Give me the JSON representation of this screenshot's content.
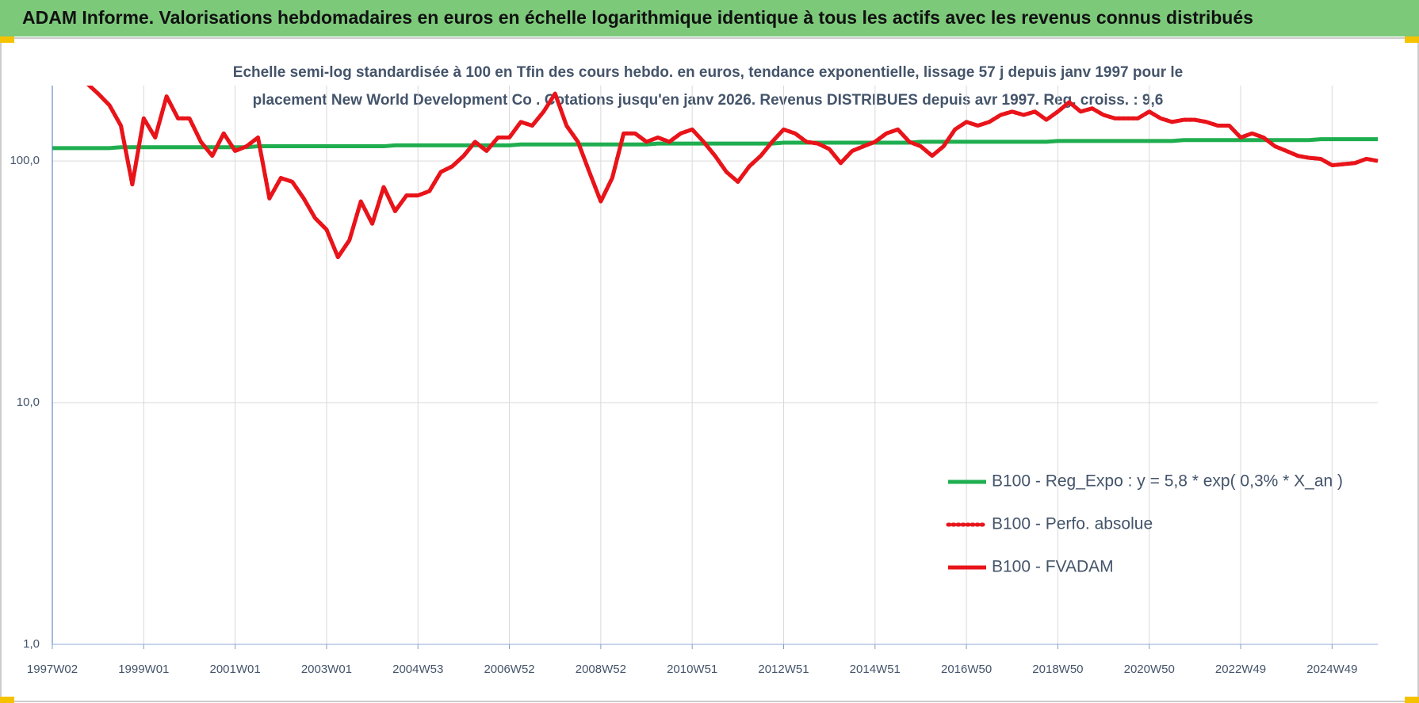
{
  "header": {
    "title": "ADAM Informe. Valorisations hebdomadaires en euros en échelle logarithmique identique à tous les actifs avec les revenus connus distribués"
  },
  "chart_data": {
    "type": "line",
    "subtitle": [
      "Echelle semi-log standardisée à 100 en Tfin des cours hebdo. en euros, tendance exponentielle, lissage 57 j depuis janv 1997 pour le",
      "placement New World Development Co . Cotations jusqu'en janv 2026. Revenus DISTRIBUES depuis avr 1997. Reg. croiss. : 9,6"
    ],
    "log_scale": true,
    "grid": true,
    "ylim": [
      1,
      205
    ],
    "yticks": [
      {
        "value": 1,
        "label": "1,0"
      },
      {
        "value": 10,
        "label": "10,0"
      },
      {
        "value": 100,
        "label": "100,0"
      }
    ],
    "categories": [
      "1997W02",
      null,
      null,
      null,
      null,
      null,
      null,
      null,
      "1999W01",
      null,
      null,
      null,
      null,
      null,
      null,
      null,
      "2001W01",
      null,
      null,
      null,
      null,
      null,
      null,
      null,
      "2003W01",
      null,
      null,
      null,
      null,
      null,
      null,
      null,
      "2004W53",
      null,
      null,
      null,
      null,
      null,
      null,
      null,
      "2006W52",
      null,
      null,
      null,
      null,
      null,
      null,
      null,
      "2008W52",
      null,
      null,
      null,
      null,
      null,
      null,
      null,
      "2010W51",
      null,
      null,
      null,
      null,
      null,
      null,
      null,
      "2012W51",
      null,
      null,
      null,
      null,
      null,
      null,
      null,
      "2014W51",
      null,
      null,
      null,
      null,
      null,
      null,
      null,
      "2016W50",
      null,
      null,
      null,
      null,
      null,
      null,
      null,
      "2018W50",
      null,
      null,
      null,
      null,
      null,
      null,
      null,
      "2020W50",
      null,
      null,
      null,
      null,
      null,
      null,
      null,
      "2022W49",
      null,
      null,
      null,
      null,
      null,
      null,
      null,
      "2024W49",
      null,
      null,
      null,
      null
    ],
    "series": [
      {
        "name": "B100 - Reg_Expo : y = 5,8 * exp( 0,3% *  X_an )",
        "color": "#1fae4f",
        "style": "solid",
        "values": [
          113,
          113,
          113,
          113,
          113,
          113,
          114,
          114,
          114,
          114,
          114,
          114,
          114,
          114,
          114,
          114,
          114,
          114,
          115,
          115,
          115,
          115,
          115,
          115,
          115,
          115,
          115,
          115,
          115,
          115,
          116,
          116,
          116,
          116,
          116,
          116,
          116,
          116,
          116,
          116,
          116,
          117,
          117,
          117,
          117,
          117,
          117,
          117,
          117,
          117,
          117,
          117,
          117,
          118,
          118,
          118,
          118,
          118,
          118,
          118,
          118,
          118,
          118,
          118,
          119,
          119,
          119,
          119,
          119,
          119,
          119,
          119,
          119,
          119,
          119,
          119,
          120,
          120,
          120,
          120,
          120,
          120,
          120,
          120,
          120,
          120,
          120,
          120,
          121,
          121,
          121,
          121,
          121,
          121,
          121,
          121,
          121,
          121,
          121,
          122,
          122,
          122,
          122,
          122,
          122,
          122,
          122,
          122,
          122,
          122,
          122,
          123,
          123,
          123,
          123,
          123,
          123
        ]
      },
      {
        "name": "B100 - Perfo. absolue",
        "color": "#e8141a",
        "style": "dotted",
        "values": [
          null,
          null,
          null,
          210,
          190,
          170,
          140,
          80,
          150,
          125,
          185,
          150,
          150,
          120,
          105,
          130,
          110,
          115,
          125,
          70,
          85,
          82,
          70,
          58,
          52,
          40,
          47,
          68,
          55,
          78,
          62,
          72,
          72,
          75,
          90,
          95,
          105,
          120,
          110,
          125,
          125,
          145,
          140,
          160,
          190,
          140,
          120,
          90,
          68,
          85,
          130,
          130,
          120,
          125,
          120,
          130,
          135,
          120,
          105,
          90,
          82,
          95,
          105,
          120,
          135,
          130,
          120,
          118,
          112,
          98,
          110,
          115,
          120,
          130,
          135,
          120,
          115,
          105,
          115,
          135,
          145,
          140,
          145,
          155,
          160,
          155,
          160,
          148,
          160,
          175,
          160,
          165,
          155,
          150,
          150,
          150,
          160,
          150,
          145,
          148,
          148,
          145,
          140,
          140,
          125,
          130,
          125,
          115,
          110,
          105,
          103,
          102,
          96,
          97,
          98,
          102,
          100
        ]
      },
      {
        "name": "B100 - FVADAM",
        "color": "#e8141a",
        "style": "solid",
        "values": [
          null,
          null,
          null,
          210,
          190,
          170,
          140,
          80,
          150,
          125,
          185,
          150,
          150,
          120,
          105,
          130,
          110,
          115,
          125,
          70,
          85,
          82,
          70,
          58,
          52,
          40,
          47,
          68,
          55,
          78,
          62,
          72,
          72,
          75,
          90,
          95,
          105,
          120,
          110,
          125,
          125,
          145,
          140,
          160,
          190,
          140,
          120,
          90,
          68,
          85,
          130,
          130,
          120,
          125,
          120,
          130,
          135,
          120,
          105,
          90,
          82,
          95,
          105,
          120,
          135,
          130,
          120,
          118,
          112,
          98,
          110,
          115,
          120,
          130,
          135,
          120,
          115,
          105,
          115,
          135,
          145,
          140,
          145,
          155,
          160,
          155,
          160,
          148,
          160,
          175,
          160,
          165,
          155,
          150,
          150,
          150,
          160,
          150,
          145,
          148,
          148,
          145,
          140,
          140,
          125,
          130,
          125,
          115,
          110,
          105,
          103,
          102,
          96,
          97,
          98,
          102,
          100
        ]
      }
    ]
  }
}
